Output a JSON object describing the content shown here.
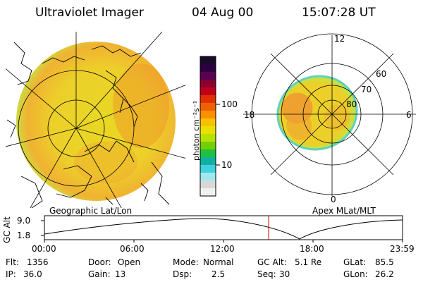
{
  "header": {
    "instrument": "Ultraviolet Imager",
    "date": "04 Aug 00",
    "time": "15:07:28 UT"
  },
  "colorbar": {
    "unit_label": "photon cm⁻²s⁻¹",
    "ticks": [
      "100",
      "10"
    ],
    "colors": [
      "#1a0a2a",
      "#2a0040",
      "#5a0050",
      "#8a0030",
      "#c00018",
      "#e03000",
      "#f06000",
      "#f89000",
      "#f8c000",
      "#e8e000",
      "#b8e000",
      "#70d000",
      "#20c040",
      "#10b0a0",
      "#40d0e0",
      "#a0e8f0",
      "#d8d8d8",
      "#f0f0f0"
    ]
  },
  "map_labels": {
    "left": "Geographic Lat/Lon",
    "right": "Apex MLat/MLT"
  },
  "polar": {
    "mlt_labels": [
      "12",
      "18",
      "6",
      "0"
    ],
    "lat_labels": [
      "60",
      "70",
      "80"
    ]
  },
  "altitude_plot": {
    "ylabel": "GC Alt",
    "yticks": [
      "9.0",
      "1.8"
    ],
    "xticks": [
      "00:00",
      "06:00",
      "12:00",
      "18:00",
      "23:59"
    ]
  },
  "status": {
    "row1": [
      {
        "label": "Flt:",
        "value": "1356"
      },
      {
        "label": "Door:",
        "value": "Open"
      },
      {
        "label": "Mode:",
        "value": "Normal"
      },
      {
        "label": "GC Alt:",
        "value": "5.1 Re"
      },
      {
        "label": "GLat:",
        "value": "85.5"
      }
    ],
    "row2": [
      {
        "label": "IP:",
        "value": "36.0"
      },
      {
        "label": "Gain:",
        "value": "13"
      },
      {
        "label": "Dsp:",
        "value": "2.5"
      },
      {
        "label": "Seq:",
        "value": "30"
      },
      {
        "label": "GLon:",
        "value": "26.2"
      }
    ]
  }
}
